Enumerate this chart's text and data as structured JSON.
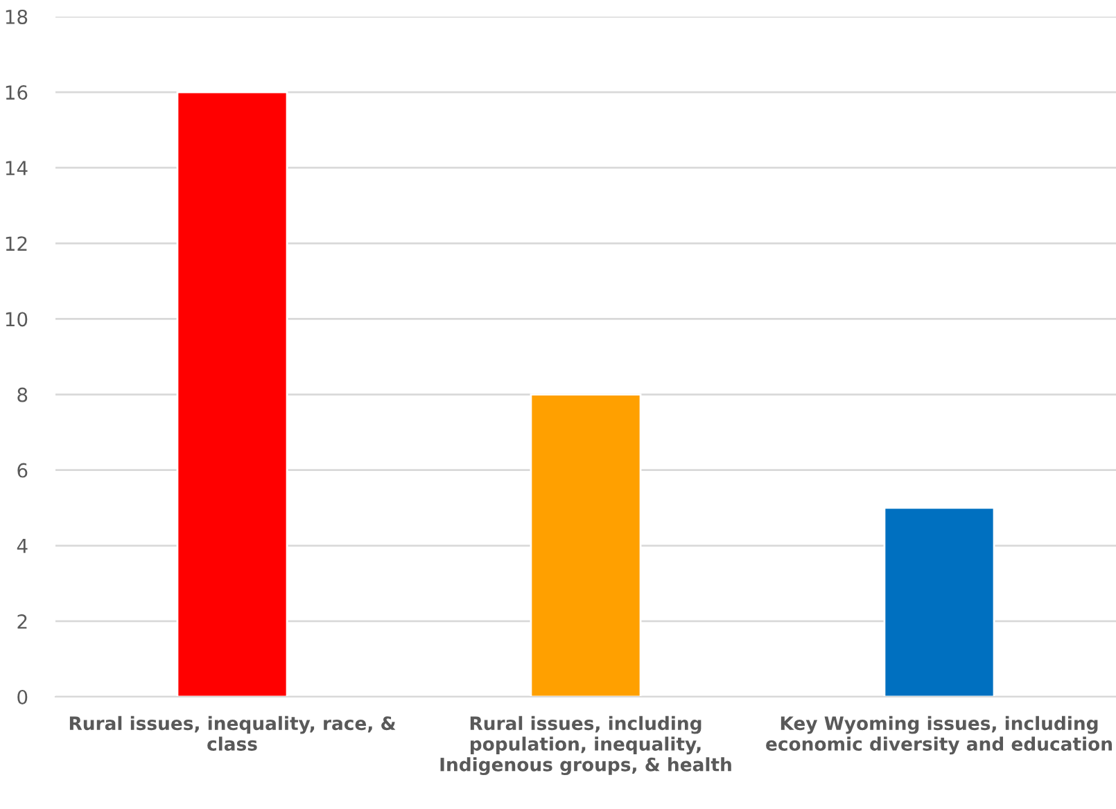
{
  "chart_data": {
    "type": "bar",
    "categories": [
      "Rural issues, inequality, race, &\nclass",
      "Rural issues, including\npopulation, inequality,\nIndigenous groups, & health",
      "Key Wyoming issues, including\neconomic diversity and education"
    ],
    "values": [
      16,
      8,
      5
    ],
    "colors": [
      "#ff0000",
      "#ffa000",
      "#0070c0"
    ],
    "ylim": [
      0,
      18
    ],
    "yticks": [
      0,
      2,
      4,
      6,
      8,
      10,
      12,
      14,
      16,
      18
    ],
    "grid": "y"
  }
}
